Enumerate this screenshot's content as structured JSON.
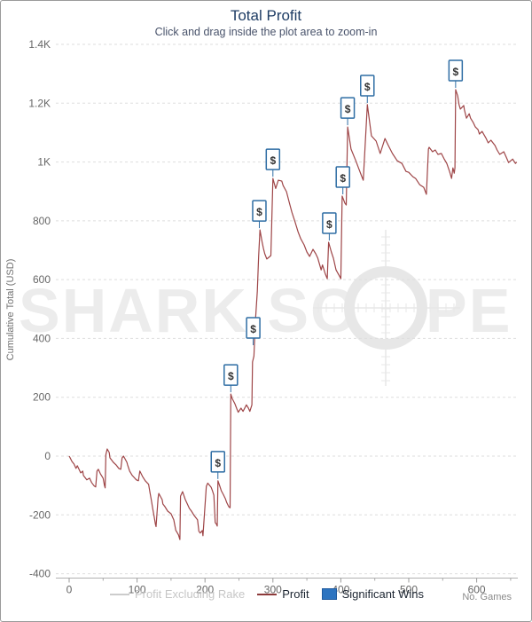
{
  "header": {
    "title": "Total Profit",
    "subtitle": "Click and drag inside the plot area to zoom-in",
    "title_color": "#1e3c64",
    "subtitle_color": "#49536b"
  },
  "watermark": {
    "text_left": "SHARK SC",
    "text_right": "PE",
    "color": "#ececec"
  },
  "legend": {
    "items": [
      {
        "label": "Profit Excluding Rake",
        "swatch": "dash",
        "swatch_color": "#cccccc",
        "text_color": "#c6c6c6"
      },
      {
        "label": "Profit",
        "swatch": "dash",
        "swatch_color": "#8d3b3b",
        "text_color": "#1b2430"
      },
      {
        "label": "Significant Wins",
        "swatch": "square",
        "swatch_color": "#2d74c0",
        "text_color": "#1b2430"
      }
    ]
  },
  "chart_data": {
    "type": "line",
    "title": "Total Profit",
    "xlabel": "No. Games",
    "ylabel": "Cumulative Total (USD)",
    "xlim": [
      0,
      660
    ],
    "ylim": [
      -400,
      1400
    ],
    "grid": true,
    "x_ticks": [
      {
        "value": 0,
        "label": "0"
      },
      {
        "value": 100,
        "label": "100"
      },
      {
        "value": 200,
        "label": "200"
      },
      {
        "value": 300,
        "label": "300"
      },
      {
        "value": 400,
        "label": "400"
      },
      {
        "value": 500,
        "label": "500"
      },
      {
        "value": 600,
        "label": "600"
      }
    ],
    "y_ticks": [
      {
        "value": 1400,
        "label": "1.4K"
      },
      {
        "value": 1200,
        "label": "1.2K"
      },
      {
        "value": 1000,
        "label": "1K"
      },
      {
        "value": 800,
        "label": "800"
      },
      {
        "value": 600,
        "label": "600"
      },
      {
        "value": 400,
        "label": "400"
      },
      {
        "value": 200,
        "label": "200"
      },
      {
        "value": 0,
        "label": "0"
      },
      {
        "value": -200,
        "label": "-200"
      },
      {
        "value": -400,
        "label": "-400"
      }
    ],
    "series": [
      {
        "name": "Profit",
        "color": "#9e4547",
        "points": [
          [
            0,
            0
          ],
          [
            2,
            -8
          ],
          [
            4,
            -18
          ],
          [
            7,
            -27
          ],
          [
            10,
            -42
          ],
          [
            12,
            -33
          ],
          [
            17,
            -57
          ],
          [
            20,
            -51
          ],
          [
            21,
            -66
          ],
          [
            26,
            -81
          ],
          [
            30,
            -75
          ],
          [
            33,
            -90
          ],
          [
            37,
            -102
          ],
          [
            39,
            -105
          ],
          [
            41,
            -51
          ],
          [
            43,
            -45
          ],
          [
            46,
            -60
          ],
          [
            50,
            -75
          ],
          [
            52,
            -100
          ],
          [
            53,
            -108
          ],
          [
            54,
            5
          ],
          [
            56,
            24
          ],
          [
            59,
            12
          ],
          [
            60,
            -6
          ],
          [
            65,
            -21
          ],
          [
            69,
            -30
          ],
          [
            73,
            -42
          ],
          [
            76,
            -45
          ],
          [
            78,
            -6
          ],
          [
            80,
            0
          ],
          [
            85,
            -21
          ],
          [
            86,
            -30
          ],
          [
            89,
            -51
          ],
          [
            93,
            -66
          ],
          [
            99,
            -81
          ],
          [
            102,
            -84
          ],
          [
            104,
            -51
          ],
          [
            108,
            -69
          ],
          [
            112,
            -84
          ],
          [
            117,
            -96
          ],
          [
            119,
            -125
          ],
          [
            121,
            -150
          ],
          [
            123,
            -178
          ],
          [
            125,
            -205
          ],
          [
            127,
            -232
          ],
          [
            128,
            -240
          ],
          [
            131,
            -142
          ],
          [
            132,
            -127
          ],
          [
            137,
            -148
          ],
          [
            138,
            -163
          ],
          [
            141,
            -172
          ],
          [
            145,
            -187
          ],
          [
            150,
            -196
          ],
          [
            154,
            -217
          ],
          [
            157,
            -253
          ],
          [
            158,
            -256
          ],
          [
            161,
            -268
          ],
          [
            163,
            -284
          ],
          [
            164,
            -136
          ],
          [
            167,
            -121
          ],
          [
            171,
            -148
          ],
          [
            174,
            -163
          ],
          [
            177,
            -178
          ],
          [
            180,
            -187
          ],
          [
            184,
            -202
          ],
          [
            189,
            -217
          ],
          [
            191,
            -256
          ],
          [
            193,
            -262
          ],
          [
            196,
            -253
          ],
          [
            197,
            -271
          ],
          [
            202,
            -103
          ],
          [
            204,
            -92
          ],
          [
            209,
            -106
          ],
          [
            211,
            -118
          ],
          [
            213,
            -133
          ],
          [
            215,
            -226
          ],
          [
            217,
            -232
          ],
          [
            218,
            -238
          ],
          [
            219,
            -84
          ],
          [
            222,
            -104
          ],
          [
            224,
            -118
          ],
          [
            227,
            -131
          ],
          [
            230,
            -145
          ],
          [
            232,
            -158
          ],
          [
            235,
            -172
          ],
          [
            237,
            -176
          ],
          [
            238,
            211
          ],
          [
            240,
            196
          ],
          [
            244,
            178
          ],
          [
            247,
            160
          ],
          [
            249,
            149
          ],
          [
            253,
            163
          ],
          [
            256,
            152
          ],
          [
            261,
            174
          ],
          [
            264,
            163
          ],
          [
            266,
            152
          ],
          [
            269,
            174
          ],
          [
            270,
            320
          ],
          [
            272,
            340
          ],
          [
            274,
            452
          ],
          [
            277,
            560
          ],
          [
            279,
            680
          ],
          [
            281,
            769
          ],
          [
            284,
            730
          ],
          [
            286,
            706
          ],
          [
            288,
            688
          ],
          [
            291,
            670
          ],
          [
            294,
            676
          ],
          [
            297,
            682
          ],
          [
            300,
            944
          ],
          [
            304,
            910
          ],
          [
            308,
            938
          ],
          [
            313,
            935
          ],
          [
            315,
            920
          ],
          [
            320,
            899
          ],
          [
            324,
            863
          ],
          [
            328,
            829
          ],
          [
            333,
            793
          ],
          [
            337,
            763
          ],
          [
            341,
            739
          ],
          [
            346,
            718
          ],
          [
            350,
            694
          ],
          [
            354,
            679
          ],
          [
            359,
            703
          ],
          [
            363,
            688
          ],
          [
            366,
            673
          ],
          [
            371,
            633
          ],
          [
            373,
            650
          ],
          [
            377,
            620
          ],
          [
            380,
            603
          ],
          [
            382,
            727
          ],
          [
            386,
            694
          ],
          [
            389,
            673
          ],
          [
            393,
            633
          ],
          [
            398,
            612
          ],
          [
            400,
            603
          ],
          [
            402,
            884
          ],
          [
            406,
            860
          ],
          [
            408,
            854
          ],
          [
            410,
            1119
          ],
          [
            415,
            1044
          ],
          [
            422,
            1004
          ],
          [
            426,
            980
          ],
          [
            431,
            950
          ],
          [
            433,
            938
          ],
          [
            439,
            1195
          ],
          [
            445,
            1089
          ],
          [
            452,
            1071
          ],
          [
            458,
            1029
          ],
          [
            465,
            1080
          ],
          [
            470,
            1056
          ],
          [
            476,
            1029
          ],
          [
            483,
            1004
          ],
          [
            490,
            995
          ],
          [
            496,
            968
          ],
          [
            500,
            965
          ],
          [
            506,
            950
          ],
          [
            510,
            944
          ],
          [
            516,
            923
          ],
          [
            522,
            914
          ],
          [
            526,
            890
          ],
          [
            529,
            1044
          ],
          [
            530,
            1050
          ],
          [
            535,
            1035
          ],
          [
            539,
            1041
          ],
          [
            543,
            1026
          ],
          [
            548,
            1029
          ],
          [
            552,
            1011
          ],
          [
            556,
            995
          ],
          [
            560,
            968
          ],
          [
            563,
            944
          ],
          [
            565,
            980
          ],
          [
            567,
            962
          ],
          [
            568,
            980
          ],
          [
            569,
            1246
          ],
          [
            572,
            1225
          ],
          [
            574,
            1195
          ],
          [
            576,
            1180
          ],
          [
            581,
            1192
          ],
          [
            582,
            1177
          ],
          [
            585,
            1149
          ],
          [
            589,
            1164
          ],
          [
            591,
            1149
          ],
          [
            595,
            1134
          ],
          [
            598,
            1119
          ],
          [
            602,
            1110
          ],
          [
            604,
            1095
          ],
          [
            608,
            1104
          ],
          [
            614,
            1080
          ],
          [
            617,
            1065
          ],
          [
            621,
            1074
          ],
          [
            627,
            1056
          ],
          [
            630,
            1041
          ],
          [
            634,
            1026
          ],
          [
            640,
            1035
          ],
          [
            644,
            1014
          ],
          [
            647,
            998
          ],
          [
            653,
            1010
          ],
          [
            657,
            995
          ],
          [
            659,
            1000
          ]
        ]
      }
    ],
    "significant_wins": {
      "marker_symbol": "$",
      "marker_color": "#2e6da4",
      "points": [
        [
          219,
          -84
        ],
        [
          238,
          211
        ],
        [
          271,
          371
        ],
        [
          280,
          769
        ],
        [
          300,
          944
        ],
        [
          383,
          727
        ],
        [
          403,
          884
        ],
        [
          410,
          1119
        ],
        [
          439,
          1195
        ],
        [
          569,
          1246
        ]
      ]
    },
    "colors": {
      "gridline": "#dedede",
      "axis_line": "#b0b0b0",
      "tick_text": "#666666"
    }
  },
  "footer": {
    "x_axis_caption": "No. Games"
  }
}
